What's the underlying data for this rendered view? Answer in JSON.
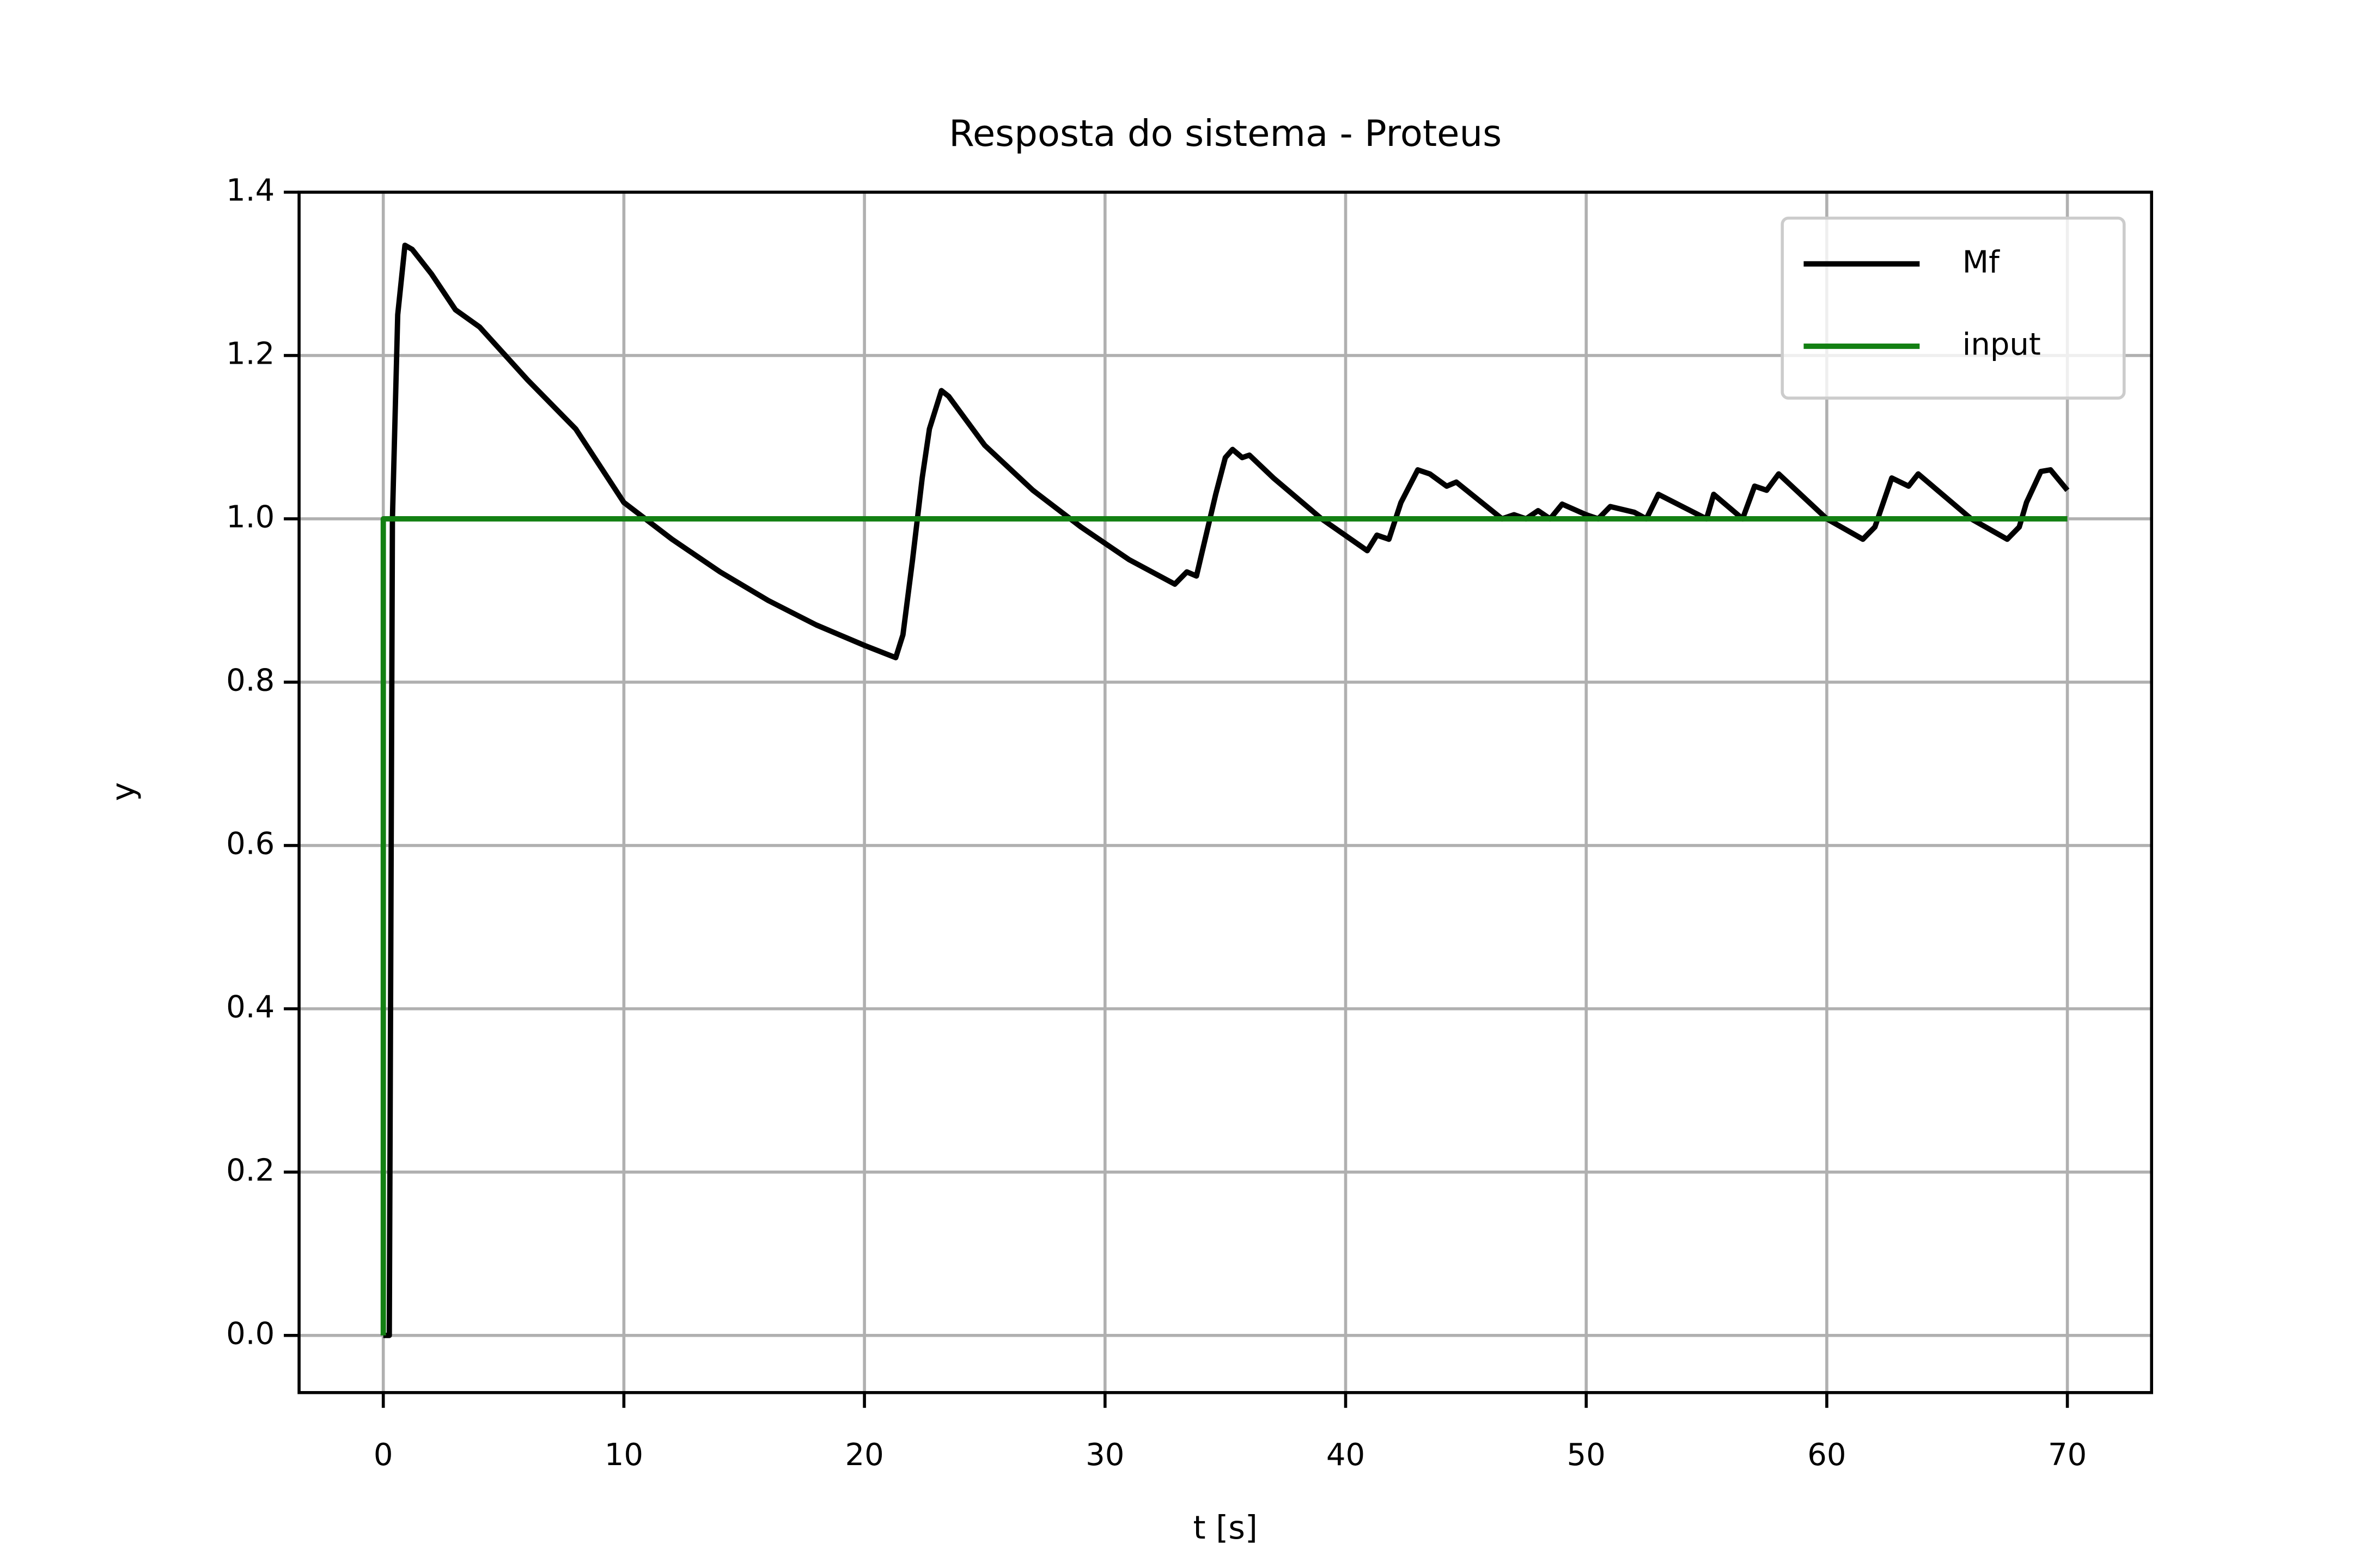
{
  "chart_data": {
    "type": "line",
    "title": "Resposta do sistema - Proteus",
    "x_label": "t [s]",
    "y_label": "y",
    "xlim": [
      -3.5,
      73.5
    ],
    "ylim": [
      -0.07,
      1.4
    ],
    "xticks": [
      0,
      10,
      20,
      30,
      40,
      50,
      60,
      70
    ],
    "yticks": [
      {
        "value": 0,
        "label": "0.0"
      },
      0.2,
      0.4,
      0.6,
      0.8,
      {
        "value": 1,
        "label": "1.0"
      },
      1.2,
      1.4
    ],
    "grid": true,
    "legend": "upper right",
    "series": [
      {
        "name": "Mf",
        "color": "#000000",
        "x": [
          0,
          0.25,
          0.38,
          0.6,
          0.9,
          1.2,
          2,
          3,
          4,
          6,
          8,
          10,
          12,
          14,
          16,
          18,
          20,
          21.3,
          21.6,
          22,
          22.4,
          22.7,
          23.2,
          23.5,
          25,
          27,
          29,
          31,
          32.9,
          33.4,
          33.8,
          34.2,
          34.6,
          35,
          35.3,
          35.7,
          36,
          37,
          39,
          40.9,
          41.3,
          41.8,
          42.3,
          43,
          43.5,
          44.2,
          44.6,
          46.5,
          47,
          47.5,
          48,
          48.5,
          49,
          50,
          50.5,
          51,
          52,
          52.5,
          53,
          55,
          55.3,
          56.5,
          57,
          57.5,
          58,
          60,
          61.5,
          62,
          62.7,
          63.4,
          63.8,
          66,
          67.5,
          68,
          68.3,
          68.9,
          69.3,
          70
        ],
        "values": [
          0,
          0,
          1.0,
          1.25,
          1.335,
          1.33,
          1.3,
          1.256,
          1.235,
          1.17,
          1.11,
          1.02,
          0.975,
          0.935,
          0.9,
          0.87,
          0.845,
          0.83,
          0.858,
          0.95,
          1.05,
          1.11,
          1.157,
          1.15,
          1.09,
          1.035,
          0.99,
          0.95,
          0.92,
          0.935,
          0.93,
          0.98,
          1.03,
          1.075,
          1.085,
          1.075,
          1.078,
          1.05,
          1.0,
          0.961,
          0.98,
          0.975,
          1.02,
          1.06,
          1.055,
          1.04,
          1.045,
          1.0,
          1.005,
          1.0,
          1.01,
          1.0,
          1.018,
          1.005,
          1.0,
          1.015,
          1.008,
          1.0,
          1.03,
          1.0,
          1.03,
          1.0,
          1.04,
          1.035,
          1.055,
          1.0,
          0.975,
          0.99,
          1.05,
          1.04,
          1.055,
          1.0,
          0.975,
          0.99,
          1.02,
          1.058,
          1.06,
          1.035
        ]
      },
      {
        "name": "input",
        "color": "#138013",
        "x": [
          0,
          0,
          70
        ],
        "values": [
          0,
          1,
          1
        ]
      }
    ]
  }
}
